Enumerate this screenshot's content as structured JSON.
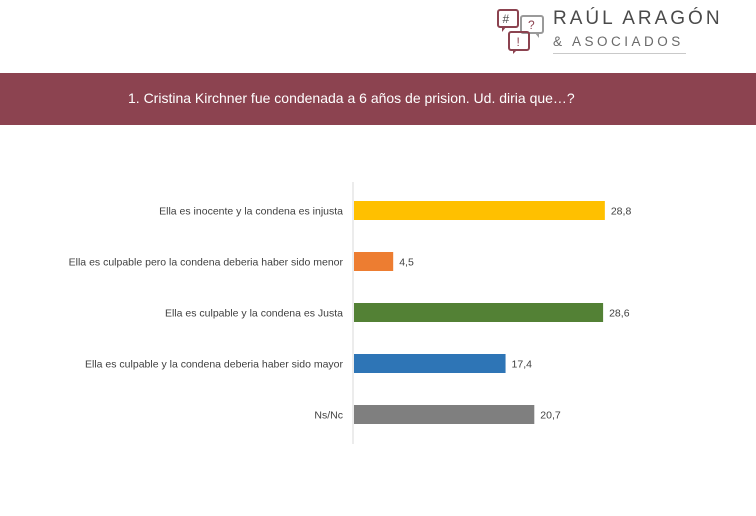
{
  "brand": {
    "line1": "RAÚL ARAGÓN",
    "line2": "& ASOCIADOS",
    "icon_glyphs": [
      "#",
      "?",
      "!"
    ]
  },
  "banner": {
    "title": "1. Cristina Kirchner fue condenada a 6 años de prision. Ud. diria que…?"
  },
  "colors": {
    "banner": "#8c4350",
    "bar_yellow": "#ffc000",
    "bar_orange": "#ed7d31",
    "bar_green": "#538135",
    "bar_blue": "#2e75b6",
    "bar_gray": "#7f7f7f"
  },
  "chart_data": {
    "type": "bar",
    "orientation": "horizontal",
    "categories": [
      "Ella es inocente y la condena es injusta",
      "Ella es culpable pero la condena deberia haber sido menor",
      "Ella es  culpable y la condena es Justa",
      "Ella es culpable y la condena deberia haber sido mayor",
      "Ns/Nc"
    ],
    "values": [
      28.8,
      4.5,
      28.6,
      17.4,
      20.7
    ],
    "value_labels": [
      "28,8",
      "4,5",
      "28,6",
      "17,4",
      "20,7"
    ],
    "bar_colors": [
      "#ffc000",
      "#ed7d31",
      "#538135",
      "#2e75b6",
      "#7f7f7f"
    ],
    "xlim": [
      0,
      35
    ],
    "grid": false
  }
}
